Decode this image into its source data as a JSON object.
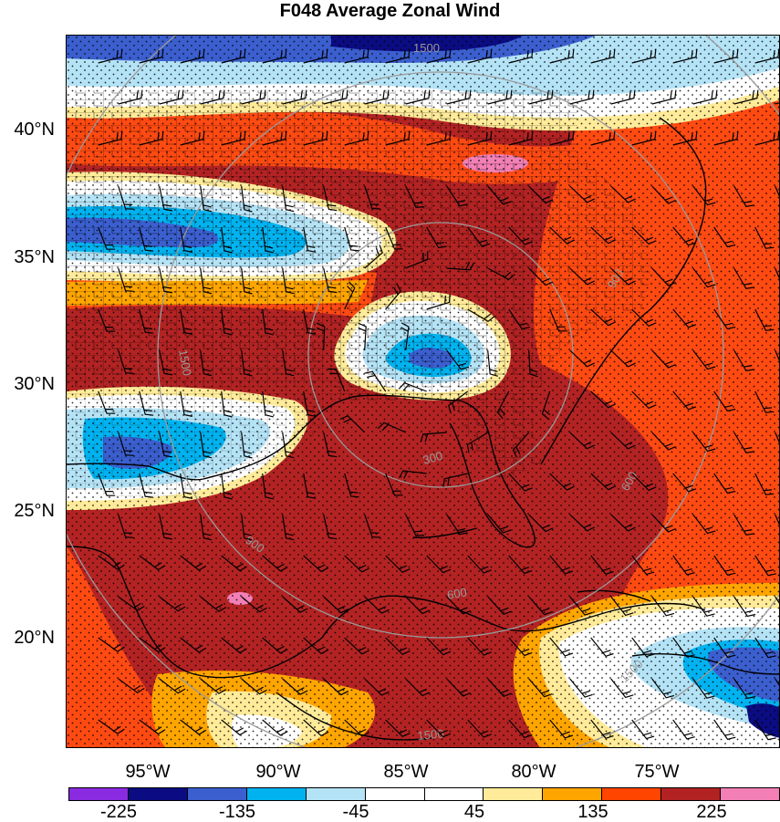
{
  "title": "F048 Average Zonal Wind",
  "lat_labels": [
    "40°N",
    "35°N",
    "30°N",
    "25°N",
    "20°N"
  ],
  "lon_labels": [
    "95°W",
    "90°W",
    "85°W",
    "80°W",
    "75°W"
  ],
  "colorbar": {
    "colors": [
      "#8a2be2",
      "#0b0b82",
      "#3b5fcf",
      "#00b3f0",
      "#b5e3f6",
      "#ffffff",
      "#ffffff",
      "#ffeb99",
      "#ffa500",
      "#ff4500",
      "#b22222",
      "#f27fb5"
    ],
    "labels": [
      "-225",
      "-135",
      "-45",
      "45",
      "135",
      "225"
    ]
  },
  "range_ring_labels": [
    "1500",
    "900",
    "300",
    "900",
    "1500",
    "600",
    "1500",
    "600",
    "1500"
  ],
  "colors": {
    "dark_red": "#b32323",
    "orange_red": "#ff4a12",
    "orange": "#ffa500",
    "yellow": "#ffeb99",
    "white": "#ffffff",
    "light_blue": "#b5e3f6",
    "cyan": "#00b3f0",
    "blue": "#3b5fcf",
    "navy": "#0b0b82",
    "pink": "#f27fb5",
    "ring_gray": "#9a9a9a"
  }
}
